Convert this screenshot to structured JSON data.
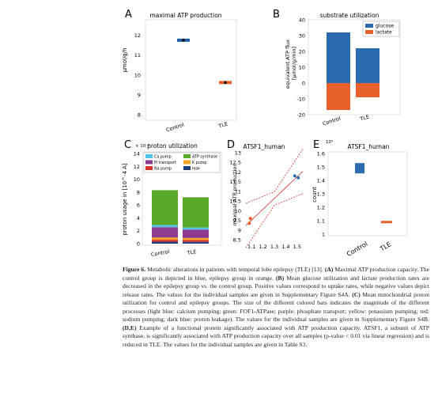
{
  "chart_data": [
    {
      "panel": "A",
      "type": "scatter",
      "title": "maximal ATP production",
      "ylabel": "μmol/g/h",
      "categories": [
        "Control",
        "TLE"
      ],
      "yticks": [
        8,
        9,
        10,
        11,
        12
      ],
      "ylim": [
        7.8,
        12.7
      ],
      "values": [
        11.75,
        9.62
      ],
      "colors": [
        "#1f5fa8",
        "#e8602c"
      ]
    },
    {
      "panel": "B",
      "type": "bar",
      "title": "substrate utilization",
      "ylabel": "equivalent ATP flux\n[μmol/g/min]",
      "categories": [
        "Control",
        "TLE"
      ],
      "yticks": [
        -20,
        -10,
        0,
        10,
        20,
        30,
        40
      ],
      "ylim": [
        -20,
        40
      ],
      "series": [
        {
          "name": "glucose",
          "values": [
            32,
            22
          ],
          "color": "#2b6cb0"
        },
        {
          "name": "lactate",
          "values": [
            -17,
            -9
          ],
          "color": "#e8602c"
        }
      ],
      "legend": "top-right"
    },
    {
      "panel": "C",
      "type": "bar",
      "title": "proton utilization",
      "ylabel": "proton usage in [10^-4 A]",
      "exponent_label": "× 10⁻⁴",
      "categories": [
        "Control",
        "TLE"
      ],
      "yticks": [
        0,
        2,
        4,
        6,
        8,
        10,
        12,
        14
      ],
      "ylim": [
        0,
        14
      ],
      "series": [
        {
          "name": "Ca pump",
          "values": [
            0.35,
            0.32
          ],
          "color": "#4fc3e8"
        },
        {
          "name": "ATP synthase",
          "values": [
            5.4,
            4.7
          ],
          "color": "#5aaa2a"
        },
        {
          "name": "Pi transport",
          "values": [
            1.6,
            1.3
          ],
          "color": "#8e3a8e"
        },
        {
          "name": "K pump",
          "values": [
            0.35,
            0.3
          ],
          "color": "#f2a623"
        },
        {
          "name": "Na pump",
          "values": [
            0.3,
            0.3
          ],
          "color": "#d9342b"
        },
        {
          "name": "leak",
          "values": [
            0.3,
            0.28
          ],
          "color": "#1c3f80"
        }
      ],
      "legend": "top"
    },
    {
      "panel": "D",
      "type": "scatter",
      "title": "ATSF1_human",
      "ylabel": "maximal ATP production",
      "xticks": [
        "1.1",
        "1.2",
        "1.3",
        "1.4",
        "1.5"
      ],
      "yticks": [
        "8.5",
        "9",
        "9.5",
        "10",
        "10.5",
        "11",
        "11.5",
        "12",
        "12.5",
        "13"
      ],
      "xlim": [
        1.05,
        1.55
      ],
      "ylim": [
        8.5,
        13
      ],
      "points": [
        {
          "x": 1.08,
          "y": 9.35,
          "color": "#e8602c"
        },
        {
          "x": 1.09,
          "y": 9.6,
          "color": "#e8602c"
        },
        {
          "x": 1.48,
          "y": 11.8,
          "color": "#2b6cb0"
        },
        {
          "x": 1.51,
          "y": 11.7,
          "color": "#2b6cb0"
        }
      ],
      "fit_color": "#d9342b"
    },
    {
      "panel": "E",
      "type": "scatter",
      "title": "ATSF1_human",
      "ylabel": "count",
      "exponent_label": "10⁴",
      "categories": [
        "Control",
        "TLE"
      ],
      "yticks": [
        "1",
        "1.1",
        "1.2",
        "1.3",
        "1.4",
        "1.5",
        "1.6"
      ],
      "ylim": [
        1,
        1.6
      ],
      "values": [
        1.49,
        1.09
      ],
      "colors": [
        "#2b6cb0",
        "#e8602c"
      ]
    }
  ],
  "panel_letters": [
    "A",
    "B",
    "C",
    "D",
    "E"
  ],
  "caption": {
    "figure": "Figure 6.",
    "part1": " Metabolic alterations in patients with temporal lobe epilepsy (TLE) [13]. ",
    "a": "(A)",
    "part2": " Maximal ATP production capacity. The control group is depicted in blue, epilepsy group in orange. ",
    "b": "(B)",
    "part3": " Mean glucose utilization and lactate production rates are decreased in the epilepsy group vs. the control group. Positive values correspond to uptake rates, while negative values depict release rates. The values for the individual samples are given in Supplementary Figure S4A. ",
    "c": "(C)",
    "part4": " Mean mitochondrial proton utilization for control and epilepsy groups. The size of the different colored bars indicates the magnitude of the different processes (light blue: calcium pumping; green: FOF1-ATPase; purple: phosphate transport; yellow: potassium pumping; red: sodium pumping; dark blue: proton leakage). The values for the individual samples are given in Supplementary Figure S4B. ",
    "de": "(D,E)",
    "part5": " Example of a functional protein significantly associated with ATP production capacity. ATSF1, a subunit of ATP synthase, is significantly associated with ATP production capacity over all samples (p-value < 0.01 via linear regression) and is reduced in TLE. The values for the individual samples are given in Table S3."
  }
}
